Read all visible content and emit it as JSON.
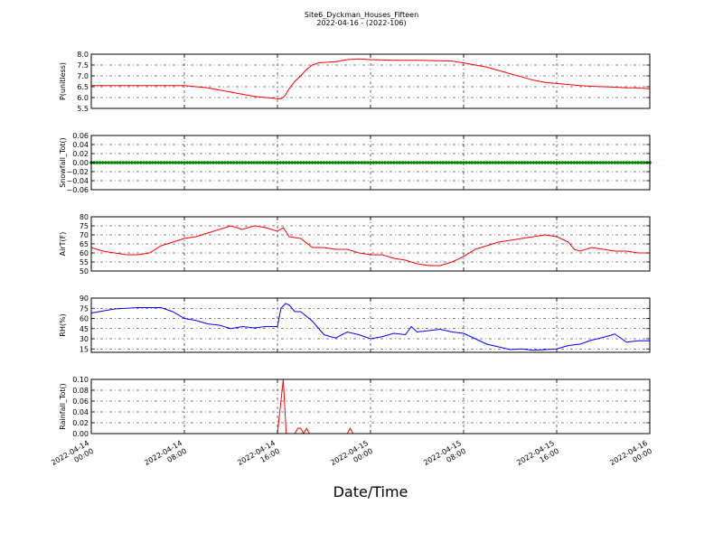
{
  "chart_data": {
    "type": "line",
    "title": "Site6_Dyckman_Houses_Fifteen",
    "subtitle": "2022-04-16 - (2022-106)",
    "xlabel": "Date/Time",
    "x_ticks": [
      {
        "pos": 0,
        "line1": "2022-04-14",
        "line2": "00:00"
      },
      {
        "pos": 8,
        "line1": "2022-04-14",
        "line2": "08:00"
      },
      {
        "pos": 16,
        "line1": "2022-04-14",
        "line2": "16:00"
      },
      {
        "pos": 24,
        "line1": "2022-04-15",
        "line2": "00:00"
      },
      {
        "pos": 32,
        "line1": "2022-04-15",
        "line2": "08:00"
      },
      {
        "pos": 40,
        "line1": "2022-04-15",
        "line2": "16:00"
      },
      {
        "pos": 48,
        "line1": "2022-04-16",
        "line2": "00:00"
      }
    ],
    "xlim": [
      0,
      48
    ],
    "grid": true,
    "panels": [
      {
        "name": "p",
        "ylabel": "P(unitless)",
        "color": "#ff0000",
        "ylim": [
          5.5,
          8.0
        ],
        "yticks": [
          5.5,
          6.0,
          6.5,
          7.0,
          7.5,
          8.0
        ],
        "ytick_labels": [
          "5.5",
          "6.0",
          "6.5",
          "7.0",
          "7.5",
          "8.0"
        ],
        "x": [
          0,
          2,
          4,
          6,
          8,
          9,
          10,
          11,
          12,
          13,
          14,
          15,
          16,
          16.3,
          16.6,
          17,
          17.5,
          18,
          18.5,
          19,
          19.5,
          20,
          21,
          22,
          23,
          24,
          26,
          28,
          30,
          31,
          32,
          33,
          34,
          35,
          36,
          37,
          38,
          39,
          40,
          41,
          42,
          43,
          44,
          45,
          46,
          47,
          48
        ],
        "values": [
          6.55,
          6.55,
          6.55,
          6.55,
          6.55,
          6.5,
          6.45,
          6.35,
          6.25,
          6.15,
          6.05,
          6.0,
          5.95,
          5.95,
          6.05,
          6.4,
          6.75,
          7.0,
          7.3,
          7.5,
          7.6,
          7.62,
          7.65,
          7.75,
          7.78,
          7.75,
          7.72,
          7.72,
          7.7,
          7.68,
          7.6,
          7.5,
          7.4,
          7.25,
          7.1,
          6.95,
          6.8,
          6.7,
          6.65,
          6.6,
          6.55,
          6.52,
          6.5,
          6.48,
          6.45,
          6.45,
          6.4
        ]
      },
      {
        "name": "snow",
        "ylabel": "Snowfall_Tot()",
        "color": "#008000",
        "style": "markers",
        "ylim": [
          -0.06,
          0.06
        ],
        "yticks": [
          -0.06,
          -0.04,
          -0.02,
          0.0,
          0.02,
          0.04,
          0.06
        ],
        "ytick_labels": [
          "−0.06",
          "−0.04",
          "−0.02",
          "0.00",
          "0.02",
          "0.04",
          "0.06"
        ],
        "x_start": 0,
        "x_end": 48,
        "x_step": 0.25,
        "constant_value": 0.0
      },
      {
        "name": "temp",
        "ylabel": "AirT(F)",
        "color": "#ff0000",
        "ylim": [
          50,
          80
        ],
        "yticks": [
          50,
          55,
          60,
          65,
          70,
          75,
          80
        ],
        "ytick_labels": [
          "50",
          "55",
          "60",
          "65",
          "70",
          "75",
          "80"
        ],
        "x": [
          0,
          1,
          2,
          3,
          4,
          5,
          6,
          7,
          8,
          9,
          10,
          11,
          12,
          13,
          14,
          15,
          16,
          16.5,
          17,
          18,
          19,
          20,
          21,
          22,
          23,
          24,
          25,
          26,
          27,
          28,
          29,
          30,
          31,
          32,
          33,
          34,
          35,
          36,
          37,
          38,
          39,
          40,
          41,
          41.5,
          42,
          43,
          44,
          45,
          46,
          47,
          48
        ],
        "values": [
          63,
          61,
          60,
          59,
          59,
          60,
          64,
          66,
          68,
          69,
          71,
          73,
          75,
          73,
          75,
          74,
          72,
          74,
          69,
          68,
          63,
          63,
          62,
          62,
          60,
          59,
          59,
          57,
          56,
          54,
          53,
          53,
          55,
          58,
          62,
          64,
          66,
          67,
          68,
          69,
          70,
          69,
          66,
          62,
          61,
          63,
          62,
          61,
          61,
          60,
          60
        ]
      },
      {
        "name": "rh",
        "ylabel": "RH(%)",
        "color": "#0000ff",
        "ylim": [
          10,
          90
        ],
        "yticks": [
          15,
          30,
          45,
          60,
          75,
          90
        ],
        "ytick_labels": [
          "15",
          "30",
          "45",
          "60",
          "75",
          "90"
        ],
        "x": [
          0,
          2,
          4,
          6,
          7,
          8,
          9,
          10,
          11,
          12,
          13,
          14,
          15,
          16,
          16.3,
          16.7,
          17,
          17.5,
          18,
          19,
          20,
          21,
          22,
          23,
          24,
          25,
          26,
          27,
          27.5,
          28,
          29,
          30,
          31,
          32,
          33,
          34,
          35,
          36,
          37,
          38,
          39,
          40,
          41,
          42,
          43,
          44,
          45,
          46,
          47,
          48
        ],
        "values": [
          68,
          74,
          76,
          76,
          70,
          60,
          57,
          52,
          50,
          45,
          48,
          46,
          48,
          48,
          75,
          82,
          80,
          70,
          70,
          56,
          36,
          31,
          40,
          36,
          30,
          33,
          38,
          36,
          48,
          40,
          42,
          44,
          40,
          38,
          30,
          22,
          18,
          14,
          15,
          13,
          14,
          15,
          20,
          22,
          28,
          32,
          37,
          25,
          27,
          27
        ]
      },
      {
        "name": "rain",
        "ylabel": "Rainfall_Tot()",
        "color": "#ff0000",
        "ylim": [
          0.0,
          0.1
        ],
        "yticks": [
          0.0,
          0.02,
          0.04,
          0.06,
          0.08,
          0.1
        ],
        "ytick_labels": [
          "0.00",
          "0.02",
          "0.04",
          "0.06",
          "0.08",
          "0.10"
        ],
        "x": [
          0,
          16.0,
          16.5,
          16.75,
          17.0,
          17.5,
          17.75,
          18.0,
          18.25,
          18.5,
          18.75,
          19.0,
          22.0,
          22.25,
          22.5,
          48
        ],
        "values": [
          0,
          0,
          0.1,
          0.0,
          0.0,
          0.0,
          0.01,
          0.01,
          0.0,
          0.01,
          0.0,
          0.0,
          0.0,
          0.01,
          0.0,
          0
        ]
      }
    ]
  }
}
